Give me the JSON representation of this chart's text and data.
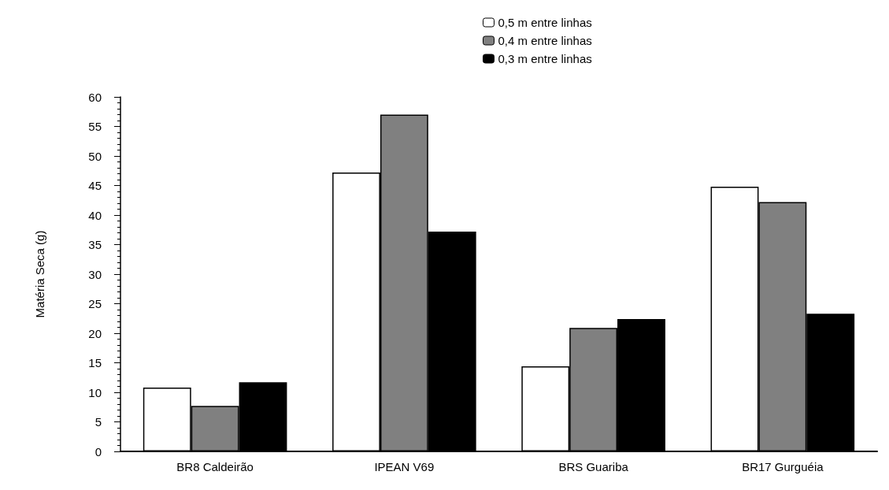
{
  "chart_data": {
    "type": "bar",
    "ylabel": "Matéria Seca (g)",
    "categories": [
      "BR8 Caldeirão",
      "IPEAN V69",
      "BRS Guariba",
      "BR17 Gurguéia"
    ],
    "series": [
      {
        "name": "0,5 m entre linhas",
        "color": "#ffffff",
        "values": [
          10.8,
          47.2,
          14.4,
          44.8
        ]
      },
      {
        "name": "0,4 m entre linhas",
        "color": "#808080",
        "values": [
          7.7,
          57.0,
          20.9,
          42.2
        ]
      },
      {
        "name": "0,3 m entre linhas",
        "color": "#000000",
        "values": [
          11.7,
          37.2,
          22.4,
          23.3
        ]
      }
    ],
    "ylim": [
      0,
      60
    ],
    "yticks": [
      0,
      5,
      10,
      15,
      20,
      25,
      30,
      35,
      40,
      45,
      50,
      55,
      60
    ],
    "grid": false,
    "legend": "top right"
  }
}
